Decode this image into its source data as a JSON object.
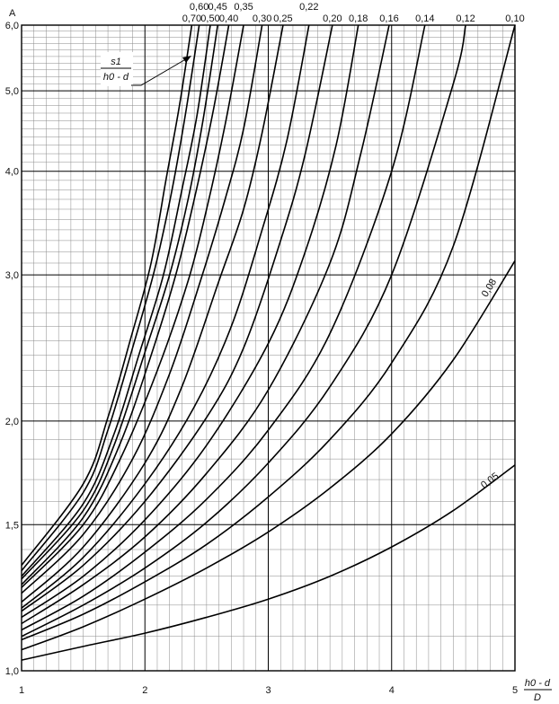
{
  "chart_data": {
    "type": "line",
    "title": "",
    "ylabel": "A",
    "xlabel": {
      "numerator": "h0 - d",
      "denominator": "D"
    },
    "annotation": {
      "numerator": "s1",
      "denominator": "h0 - d"
    },
    "xlim": [
      1,
      5
    ],
    "ylim": [
      1.0,
      6.0
    ],
    "yscale": "log",
    "grid": true,
    "x_ticks": [
      "1",
      "2",
      "3",
      "4",
      "5"
    ],
    "y_ticks": [
      {
        "value": 1.0,
        "label": "1,0"
      },
      {
        "value": 1.5,
        "label": "1,5"
      },
      {
        "value": 2.0,
        "label": "2,0"
      },
      {
        "value": 3.0,
        "label": "3,0"
      },
      {
        "value": 4.0,
        "label": "4,0"
      },
      {
        "value": 5.0,
        "label": "5,0"
      },
      {
        "value": 6.0,
        "label": "6,0"
      }
    ],
    "series": [
      {
        "name": "0,05",
        "x": [
          1.0,
          1.5,
          2.0,
          2.5,
          3.0,
          3.5,
          4.0,
          4.5,
          5.0
        ],
        "y": [
          1.03,
          1.07,
          1.11,
          1.16,
          1.22,
          1.3,
          1.41,
          1.56,
          1.77
        ]
      },
      {
        "name": "0,08",
        "x": [
          1.0,
          1.5,
          2.0,
          2.5,
          3.0,
          3.5,
          4.0,
          4.5,
          5.0
        ],
        "y": [
          1.06,
          1.13,
          1.22,
          1.33,
          1.47,
          1.66,
          1.93,
          2.37,
          3.12
        ]
      },
      {
        "name": "0,10",
        "x": [
          1.0,
          1.5,
          2.0,
          2.5,
          3.0,
          3.5,
          4.0,
          4.5,
          5.0
        ],
        "y": [
          1.09,
          1.17,
          1.28,
          1.42,
          1.62,
          1.9,
          2.35,
          3.25,
          6.0
        ]
      },
      {
        "name": "0,12",
        "x": [
          1.0,
          1.5,
          2.0,
          2.5,
          3.0,
          3.5,
          4.0,
          4.5,
          4.6
        ],
        "y": [
          1.1,
          1.2,
          1.33,
          1.51,
          1.78,
          2.2,
          3.0,
          5.1,
          6.0
        ]
      },
      {
        "name": "0,14",
        "x": [
          1.0,
          1.5,
          2.0,
          2.5,
          3.0,
          3.5,
          4.0,
          4.27
        ],
        "y": [
          1.12,
          1.23,
          1.39,
          1.61,
          1.95,
          2.55,
          4.0,
          6.0
        ]
      },
      {
        "name": "0,16",
        "x": [
          1.0,
          1.5,
          2.0,
          2.5,
          3.0,
          3.5,
          3.75,
          3.98
        ],
        "y": [
          1.14,
          1.27,
          1.45,
          1.73,
          2.18,
          3.1,
          4.2,
          6.0
        ]
      },
      {
        "name": "0,18",
        "x": [
          1.0,
          1.5,
          2.0,
          2.5,
          3.0,
          3.3,
          3.55,
          3.73
        ],
        "y": [
          1.16,
          1.3,
          1.52,
          1.87,
          2.48,
          3.2,
          4.3,
          6.0
        ]
      },
      {
        "name": "0,20",
        "x": [
          1.0,
          1.5,
          2.0,
          2.5,
          2.8,
          3.1,
          3.3,
          3.52
        ],
        "y": [
          1.18,
          1.34,
          1.6,
          2.02,
          2.45,
          3.3,
          4.2,
          6.0
        ]
      },
      {
        "name": "0,22",
        "x": [
          1.0,
          1.5,
          2.0,
          2.4,
          2.7,
          2.95,
          3.15,
          3.33
        ],
        "y": [
          1.19,
          1.37,
          1.68,
          2.08,
          2.6,
          3.4,
          4.35,
          6.0
        ]
      },
      {
        "name": "0,25",
        "x": [
          1.0,
          1.5,
          2.0,
          2.3,
          2.6,
          2.8,
          2.95,
          3.12
        ],
        "y": [
          1.21,
          1.41,
          1.78,
          2.2,
          2.95,
          3.6,
          4.45,
          6.0
        ]
      },
      {
        "name": "0,30",
        "x": [
          1.0,
          1.5,
          1.9,
          2.2,
          2.45,
          2.65,
          2.8,
          2.95
        ],
        "y": [
          1.24,
          1.46,
          1.8,
          2.28,
          2.95,
          3.7,
          4.5,
          6.0
        ]
      },
      {
        "name": "0,35",
        "x": [
          1.0,
          1.5,
          1.8,
          2.1,
          2.35,
          2.5,
          2.65,
          2.8
        ],
        "y": [
          1.26,
          1.5,
          1.8,
          2.3,
          2.95,
          3.6,
          4.55,
          6.0
        ]
      },
      {
        "name": "0,40",
        "x": [
          1.0,
          1.5,
          1.8,
          2.05,
          2.25,
          2.4,
          2.55,
          2.68
        ],
        "y": [
          1.27,
          1.53,
          1.88,
          2.4,
          3.0,
          3.7,
          4.7,
          6.0
        ]
      },
      {
        "name": "0,45",
        "x": [
          1.0,
          1.5,
          1.75,
          2.0,
          2.2,
          2.35,
          2.47,
          2.59
        ],
        "y": [
          1.29,
          1.56,
          1.87,
          2.42,
          3.0,
          3.7,
          4.6,
          6.0
        ]
      },
      {
        "name": "0,50",
        "x": [
          1.0,
          1.5,
          1.75,
          1.95,
          2.15,
          2.3,
          2.42,
          2.53
        ],
        "y": [
          1.3,
          1.59,
          1.93,
          2.4,
          3.0,
          3.8,
          4.65,
          6.0
        ]
      },
      {
        "name": "0,60",
        "x": [
          1.0,
          1.5,
          1.7,
          1.9,
          2.08,
          2.22,
          2.33,
          2.44
        ],
        "y": [
          1.32,
          1.64,
          1.95,
          2.45,
          3.05,
          3.8,
          4.7,
          6.0
        ]
      },
      {
        "name": "0,70",
        "x": [
          1.0,
          1.5,
          1.7,
          1.88,
          2.05,
          2.17,
          2.28,
          2.38
        ],
        "y": [
          1.34,
          1.68,
          2.02,
          2.5,
          3.1,
          3.9,
          4.8,
          6.0
        ]
      }
    ]
  }
}
